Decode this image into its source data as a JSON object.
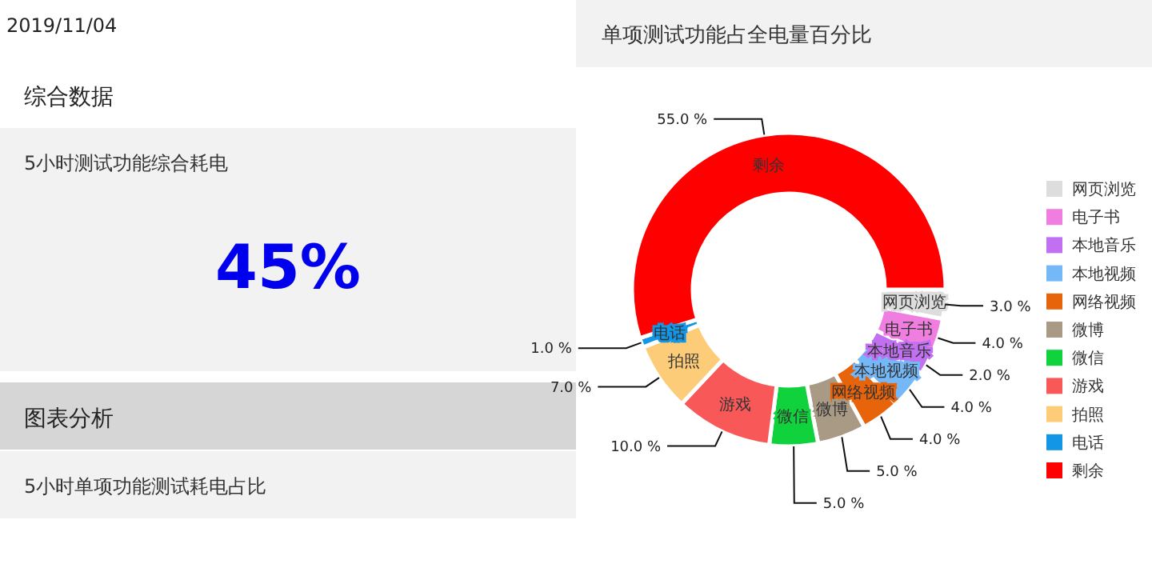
{
  "chart_data": [
    {
      "type": "other",
      "title": "综合数据",
      "subtitle": "5小时测试功能综合耗电",
      "annotations": [
        "2019/11/04",
        "45%",
        "图表分析",
        "5小时单项功能测试耗电占比"
      ]
    },
    {
      "type": "donut",
      "title": "单项测试功能占全电量百分比",
      "legend": "right",
      "categories": [
        "网页浏览",
        "电子书",
        "本地音乐",
        "本地视频",
        "网络视频",
        "微博",
        "微信",
        "游戏",
        "拍照",
        "电话",
        "剩余"
      ],
      "values": [
        3,
        4,
        2,
        4,
        4,
        5,
        5,
        10,
        7,
        1,
        55
      ],
      "value_labels": [
        "3.0 %",
        "4.0 %",
        "2.0 %",
        "4.0 %",
        "4.0 %",
        "5.0 %",
        "5.0 %",
        "10.0 %",
        "7.0 %",
        "1.0 %",
        "55.0 %"
      ],
      "colors": [
        "#dddddd",
        "#f07ee0",
        "#c070f0",
        "#74b8f8",
        "#e8640a",
        "#a89a84",
        "#10d23c",
        "#f85858",
        "#fccc78",
        "#1496e6",
        "#ff0000"
      ]
    }
  ]
}
